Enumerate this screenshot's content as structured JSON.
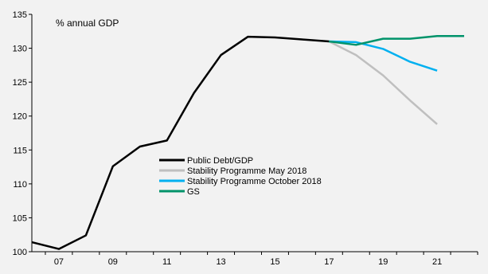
{
  "chart_data": {
    "type": "line",
    "unit_label": "% annual GDP",
    "x_ticks": [
      "07",
      "09",
      "11",
      "13",
      "15",
      "17",
      "19",
      "21"
    ],
    "y_ticks": [
      100,
      105,
      110,
      115,
      120,
      125,
      130,
      135
    ],
    "xlim": [
      2006,
      2022.5
    ],
    "ylim": [
      100,
      135
    ],
    "grid": false,
    "legend_position": "center",
    "series": [
      {
        "name": "Public Debt/GDP",
        "color": "#000000",
        "x": [
          2006,
          2007,
          2008,
          2009,
          2010,
          2011,
          2012,
          2013,
          2014,
          2015,
          2016,
          2017
        ],
        "y": [
          101.4,
          100.4,
          102.4,
          112.6,
          115.5,
          116.4,
          123.4,
          129.0,
          131.7,
          131.6,
          131.3,
          131.0
        ]
      },
      {
        "name": "Stability Programme May 2018",
        "color": "#bfbfbf",
        "x": [
          2017,
          2018,
          2019,
          2020,
          2021
        ],
        "y": [
          131.0,
          129.0,
          126.0,
          122.3,
          118.8
        ]
      },
      {
        "name": "Stability Programme October 2018",
        "color": "#00b0f0",
        "x": [
          2017,
          2018,
          2019,
          2020,
          2021
        ],
        "y": [
          131.0,
          130.9,
          129.9,
          128.0,
          126.7
        ]
      },
      {
        "name": "GS",
        "color": "#00936a",
        "x": [
          2017,
          2018,
          2019,
          2020,
          2021,
          2022
        ],
        "y": [
          131.0,
          130.5,
          131.4,
          131.4,
          131.8,
          131.8
        ]
      }
    ]
  }
}
